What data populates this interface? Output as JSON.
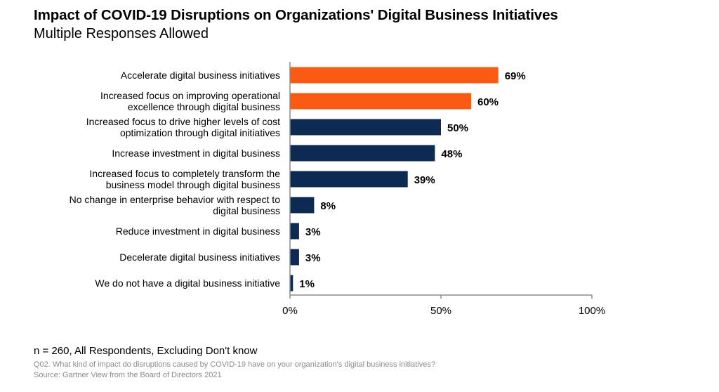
{
  "header": {
    "title": "Impact of COVID-19 Disruptions on Organizations' Digital Business Initiatives",
    "subtitle": "Multiple Responses Allowed"
  },
  "footer": {
    "note": "n = 260, All Respondents, Excluding Don't know",
    "question": "Q02. What kind of impact do disruptions caused by COVID-19 have on your organization's digital business initiatives?",
    "source": "Source: Gartner View from the Board of Directors 2021"
  },
  "colors": {
    "highlight": "#fb5a14",
    "primary": "#0d2a52",
    "axis": "#8c8c8c"
  },
  "chart_data": {
    "type": "bar",
    "orientation": "horizontal",
    "title": "Impact of COVID-19 Disruptions on Organizations' Digital Business Initiatives",
    "subtitle": "Multiple Responses Allowed",
    "categories": [
      [
        "Accelerate digital business initiatives"
      ],
      [
        "Increased focus on improving operational",
        "excellence through digital business"
      ],
      [
        "Increased focus to drive higher levels of cost",
        "optimization through digital initiatives"
      ],
      [
        "Increase investment in digital business"
      ],
      [
        "Increased focus to completely transform the",
        "business model through digital business"
      ],
      [
        "No change in enterprise behavior with respect to",
        "digital business"
      ],
      [
        "Reduce investment in digital business"
      ],
      [
        "Decelerate digital business initiatives"
      ],
      [
        "We do not have a digital business initiative"
      ]
    ],
    "values": [
      69,
      60,
      50,
      48,
      39,
      8,
      3,
      3,
      1
    ],
    "value_labels": [
      "69%",
      "60%",
      "50%",
      "48%",
      "39%",
      "8%",
      "3%",
      "3%",
      "1%"
    ],
    "highlighted": [
      true,
      true,
      false,
      false,
      false,
      false,
      false,
      false,
      false
    ],
    "xlim": [
      0,
      100
    ],
    "xticks": [
      0,
      50,
      100
    ],
    "xtick_labels": [
      "0%",
      "50%",
      "100%"
    ],
    "grid": false,
    "legend": "none"
  }
}
